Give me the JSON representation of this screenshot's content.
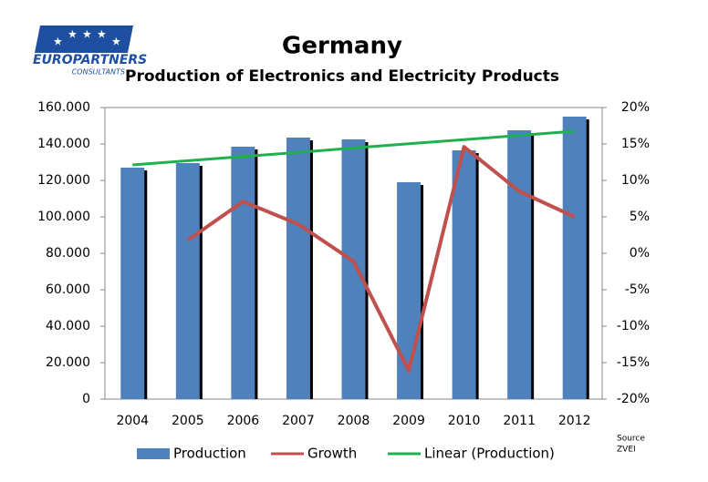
{
  "logo": {
    "name": "EUROPARTNERS",
    "subname": "CONSULTANTS"
  },
  "source": {
    "label": "Source",
    "value": "ZVEI"
  },
  "chart_data": {
    "type": "bar",
    "title": "Germany",
    "subtitle": "Production of Electronics and Electricity Products",
    "categories": [
      "2004",
      "2005",
      "2006",
      "2007",
      "2008",
      "2009",
      "2010",
      "2011",
      "2012"
    ],
    "series": [
      {
        "name": "Production",
        "type": "bar",
        "color": "#4f81bd",
        "values": [
          127000,
          129500,
          138500,
          143500,
          142500,
          119000,
          136500,
          147500,
          155000
        ]
      },
      {
        "name": "Growth",
        "type": "line",
        "axis": "y2",
        "color": "#c0504d",
        "values": [
          null,
          1.8,
          7.1,
          4.0,
          -1.1,
          -16.1,
          14.6,
          8.5,
          5.0
        ]
      },
      {
        "name": "Linear (Production)",
        "type": "line",
        "color": "#1fb04f",
        "values": [
          128500,
          130800,
          133100,
          135400,
          137800,
          140100,
          142400,
          144700,
          147000
        ]
      }
    ],
    "ylim": [
      0,
      160000
    ],
    "yticks": [
      0,
      {
        "value": 20000,
        "label": "20.000"
      },
      {
        "value": 40000,
        "label": "40.000"
      },
      {
        "value": 60000,
        "label": "60.000"
      },
      {
        "value": 80000,
        "label": "80.000"
      },
      {
        "value": 100000,
        "label": "100.000"
      },
      {
        "value": 120000,
        "label": "120.000"
      },
      {
        "value": 140000,
        "label": "140.000"
      },
      {
        "value": 160000,
        "label": "160.000"
      }
    ],
    "y2lim": [
      -20,
      20
    ],
    "y2ticks": [
      {
        "value": -20,
        "label": "-20%"
      },
      {
        "value": -15,
        "label": "-15%"
      },
      {
        "value": -10,
        "label": "-10%"
      },
      {
        "value": -5,
        "label": "-5%"
      },
      {
        "value": 0,
        "label": "0%"
      },
      {
        "value": 5,
        "label": "5%"
      },
      {
        "value": 10,
        "label": "10%"
      },
      {
        "value": 15,
        "label": "15%"
      },
      {
        "value": 20,
        "label": "20%"
      }
    ],
    "legend": "bottom"
  }
}
